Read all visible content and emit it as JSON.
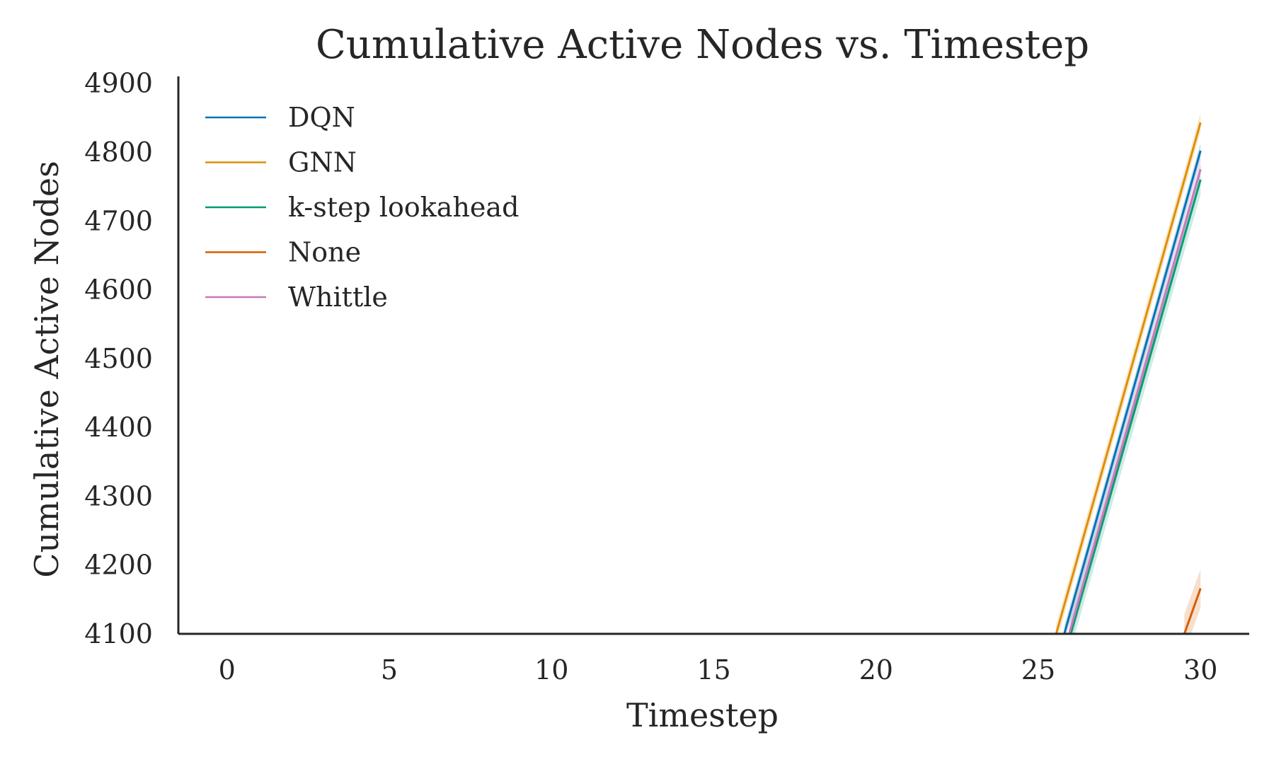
{
  "chart_data": {
    "type": "line",
    "title": "Cumulative Active Nodes vs. Timestep",
    "xlabel": "Timestep",
    "ylabel": "Cumulative Active Nodes",
    "xlim": [
      -1.5,
      31.5
    ],
    "ylim": [
      4100,
      4910
    ],
    "x_ticks": [
      0,
      5,
      10,
      15,
      20,
      25,
      30
    ],
    "y_ticks": [
      4100,
      4200,
      4300,
      4400,
      4500,
      4600,
      4700,
      4800,
      4900
    ],
    "x_tick_labels": [
      "0",
      "5",
      "10",
      "15",
      "20",
      "25",
      "30"
    ],
    "y_tick_labels": [
      "4100",
      "4200",
      "4300",
      "4400",
      "4500",
      "4600",
      "4700",
      "4800",
      "4900"
    ],
    "grid": false,
    "legend_position": "upper-left",
    "series": [
      {
        "name": "DQN",
        "color": "#0173b2",
        "x": [
          25.8,
          30
        ],
        "y": [
          4100,
          4802
        ],
        "band": 12
      },
      {
        "name": "GNN",
        "color": "#de8f05",
        "x": [
          25.55,
          30
        ],
        "y": [
          4100,
          4843
        ],
        "band": 14
      },
      {
        "name": "k-step lookahead",
        "color": "#029e73",
        "x": [
          26.0,
          30
        ],
        "y": [
          4100,
          4760
        ],
        "band": 22
      },
      {
        "name": "None",
        "color": "#d55e00",
        "x": [
          29.5,
          30
        ],
        "y": [
          4100,
          4166
        ],
        "band": 28
      },
      {
        "name": "Whittle",
        "color": "#cc78bc",
        "x": [
          25.95,
          30
        ],
        "y": [
          4100,
          4775
        ],
        "band": 18
      }
    ]
  }
}
